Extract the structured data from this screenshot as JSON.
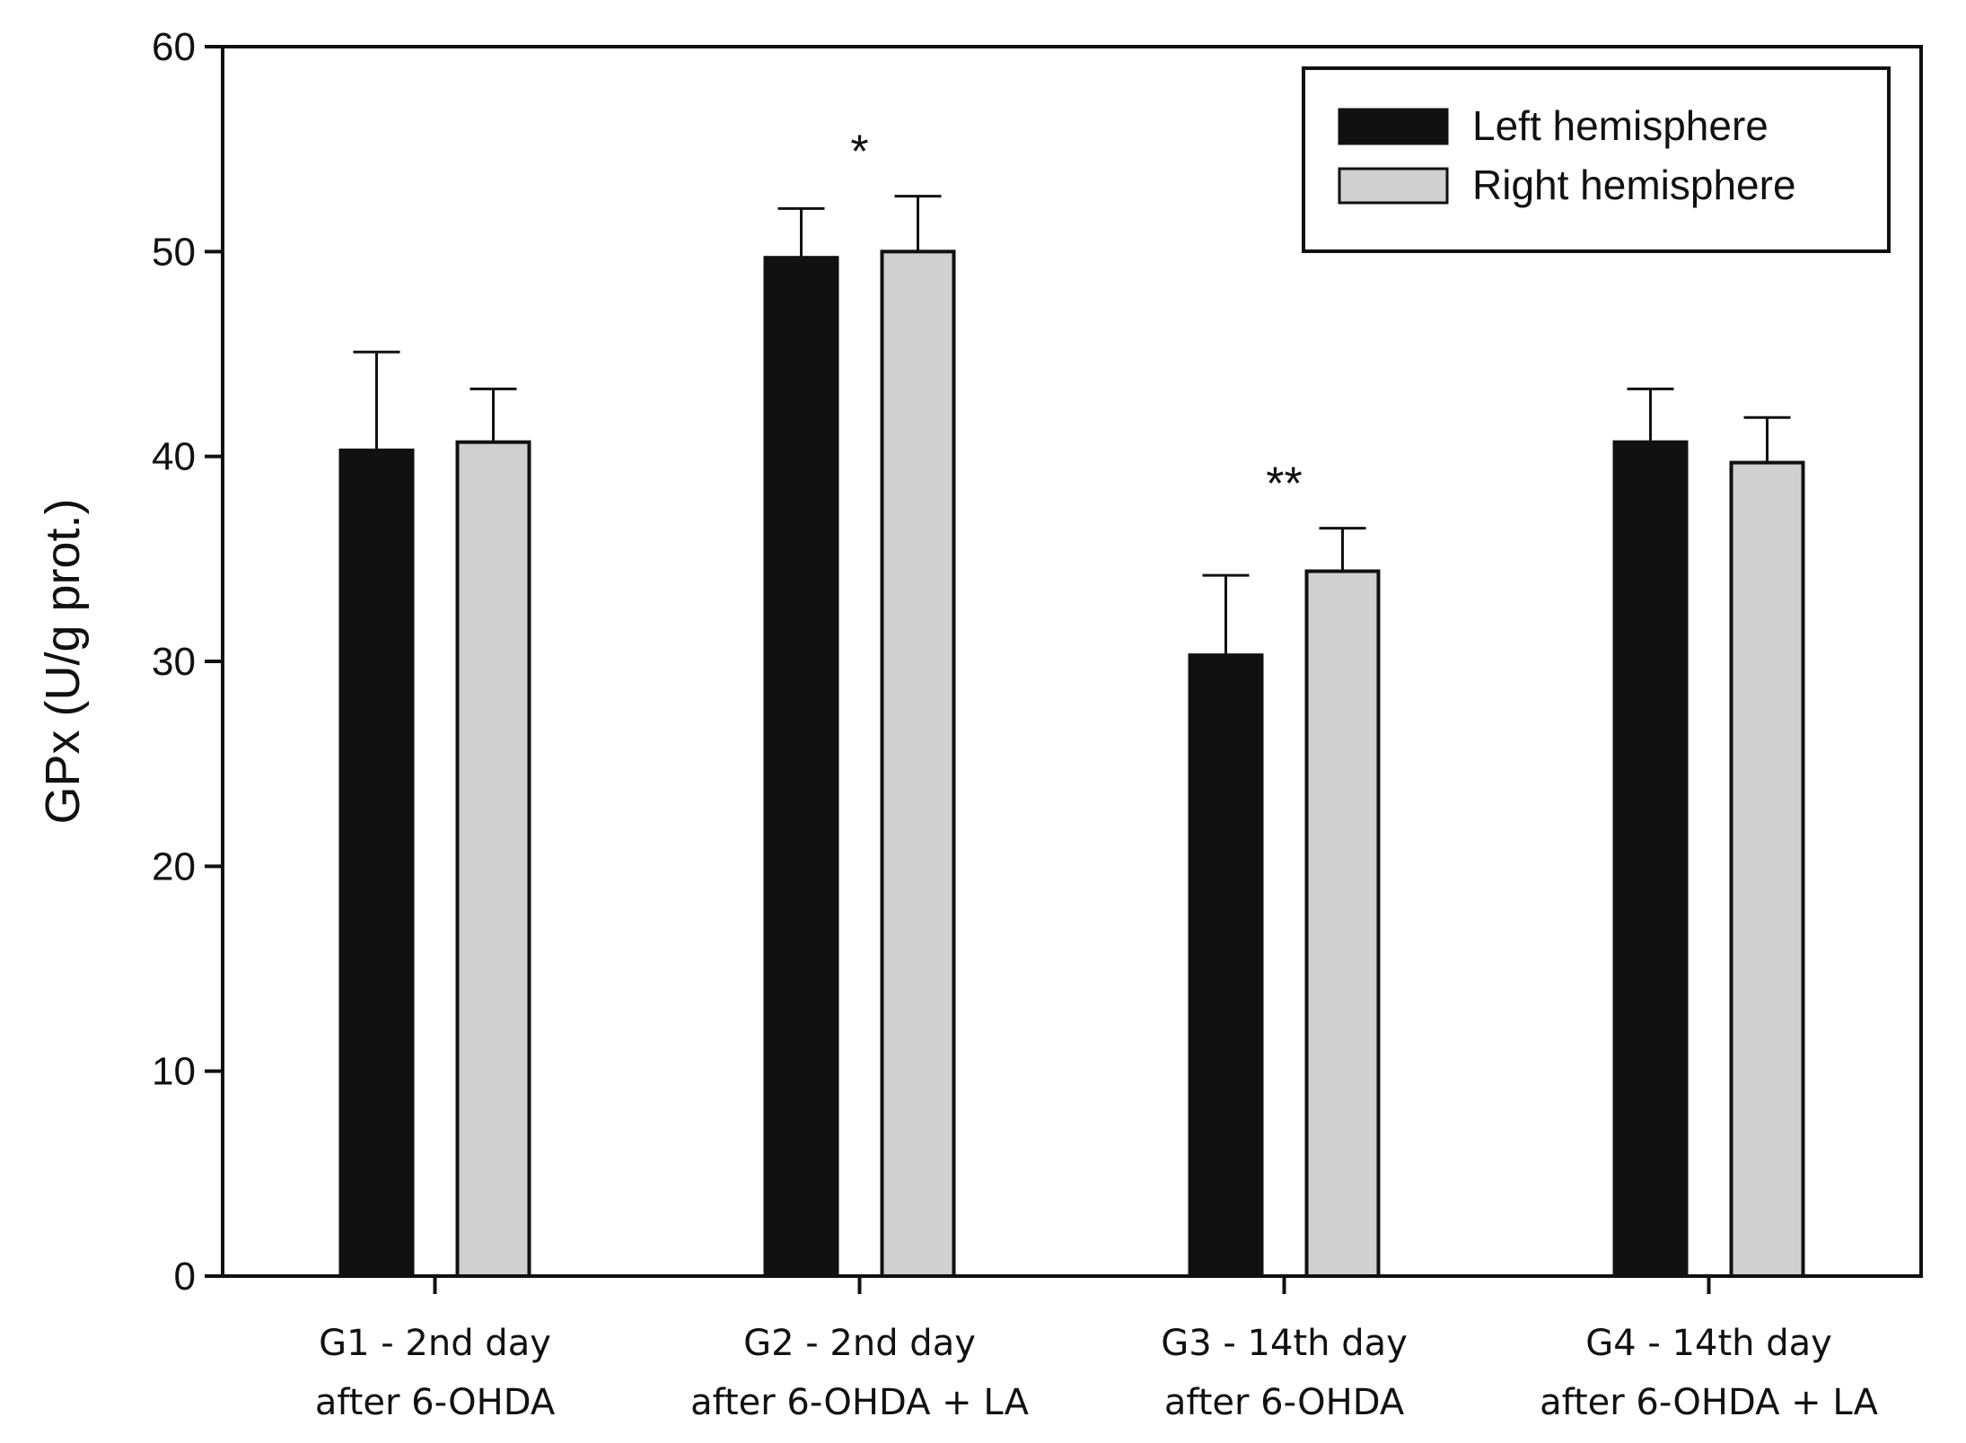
{
  "chart_data": {
    "type": "bar",
    "categories": [
      [
        "G1 - 2nd day",
        "after 6-OHDA"
      ],
      [
        "G2 - 2nd day",
        "after 6-OHDA + LA"
      ],
      [
        "G3 - 14th day",
        "after 6-OHDA"
      ],
      [
        "G4 - 14th day",
        "after 6-OHDA + LA"
      ]
    ],
    "series": [
      {
        "name": "Left hemisphere",
        "color": "#111111",
        "values": [
          40.3,
          49.7,
          30.3,
          40.7
        ],
        "errors": [
          4.8,
          2.4,
          3.9,
          2.6
        ]
      },
      {
        "name": "Right hemisphere",
        "color": "#d0d0d0",
        "values": [
          40.7,
          50.0,
          34.4,
          39.7
        ],
        "errors": [
          2.6,
          2.7,
          2.1,
          2.2
        ]
      }
    ],
    "annotations": [
      {
        "category": 1,
        "text": "*"
      },
      {
        "category": 2,
        "text": "**"
      }
    ],
    "xlabel": "",
    "ylabel": "GPx (U/g prot.)",
    "ylim": [
      0,
      60
    ],
    "yticks": [
      0,
      10,
      20,
      30,
      40,
      50,
      60
    ],
    "legend": {
      "position": "top-right"
    },
    "grid": false
  }
}
